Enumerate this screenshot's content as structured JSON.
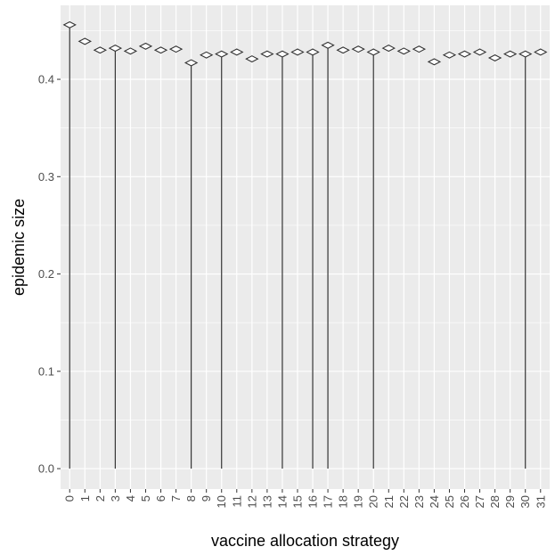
{
  "chart_data": {
    "type": "scatter",
    "xlabel": "vaccine allocation strategy",
    "ylabel": "epidemic size",
    "categories": [
      "0",
      "1",
      "2",
      "3",
      "4",
      "5",
      "6",
      "7",
      "8",
      "9",
      "10",
      "11",
      "12",
      "13",
      "14",
      "15",
      "16",
      "17",
      "18",
      "19",
      "20",
      "21",
      "22",
      "23",
      "24",
      "25",
      "26",
      "27",
      "28",
      "29",
      "30",
      "31"
    ],
    "values": [
      0.456,
      0.439,
      0.43,
      0.432,
      0.429,
      0.434,
      0.43,
      0.431,
      0.417,
      0.425,
      0.426,
      0.428,
      0.421,
      0.426,
      0.426,
      0.428,
      0.428,
      0.435,
      0.43,
      0.431,
      0.428,
      0.432,
      0.429,
      0.431,
      0.418,
      0.425,
      0.426,
      0.428,
      0.422,
      0.426,
      0.426,
      0.428
    ],
    "error_bar_low": [
      0.0,
      null,
      null,
      0.0,
      null,
      null,
      null,
      null,
      0.0,
      null,
      0.0,
      null,
      null,
      null,
      0.0,
      null,
      0.0,
      0.0,
      null,
      null,
      0.0,
      null,
      null,
      null,
      null,
      null,
      null,
      null,
      null,
      null,
      0.0,
      null
    ],
    "yticks": [
      0.0,
      0.1,
      0.2,
      0.3,
      0.4
    ],
    "yticklabels": [
      "0.0",
      "0.1",
      "0.2",
      "0.3",
      "0.4"
    ],
    "ylim": [
      -0.021,
      0.476
    ],
    "grid": true,
    "legend": "none",
    "colors": {
      "panel": "#ebebeb",
      "grid": "#ffffff",
      "marker_stroke": "#333333",
      "marker_fill": "#ffffff",
      "errorbar": "#333333",
      "tick_label": "#4d4d4d",
      "axis_title": "#000000"
    }
  }
}
